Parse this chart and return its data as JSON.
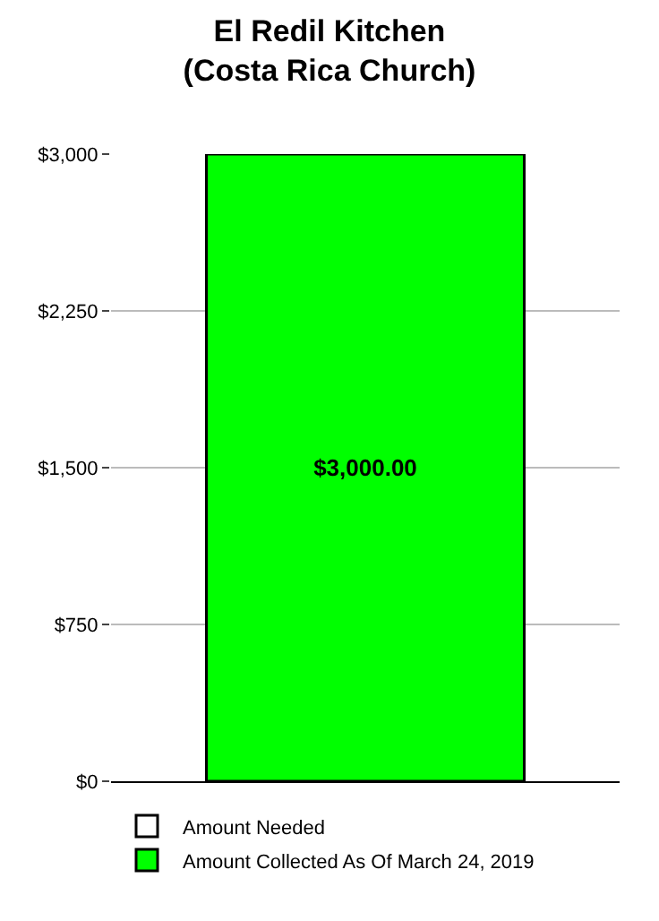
{
  "chart_data": {
    "type": "bar",
    "title": "El Redil Kitchen\n(Costa Rica Church)",
    "categories": [
      null
    ],
    "series": [
      {
        "name": "Amount Needed",
        "color": "#ffffff",
        "values": [
          null
        ]
      },
      {
        "name": "Amount Collected As Of March 24, 2019",
        "color": "#00ff00",
        "values": [
          3000
        ],
        "value_labels": [
          "$3,000.00"
        ]
      }
    ],
    "ylim": [
      0,
      3000
    ],
    "yticks": [
      {
        "value": 0,
        "label": "$0"
      },
      {
        "value": 750,
        "label": "$750"
      },
      {
        "value": 1500,
        "label": "$1,500"
      },
      {
        "value": 2250,
        "label": "$2,250"
      },
      {
        "value": 3000,
        "label": "$3,000"
      }
    ],
    "grid": "y",
    "legend": "bottom"
  }
}
